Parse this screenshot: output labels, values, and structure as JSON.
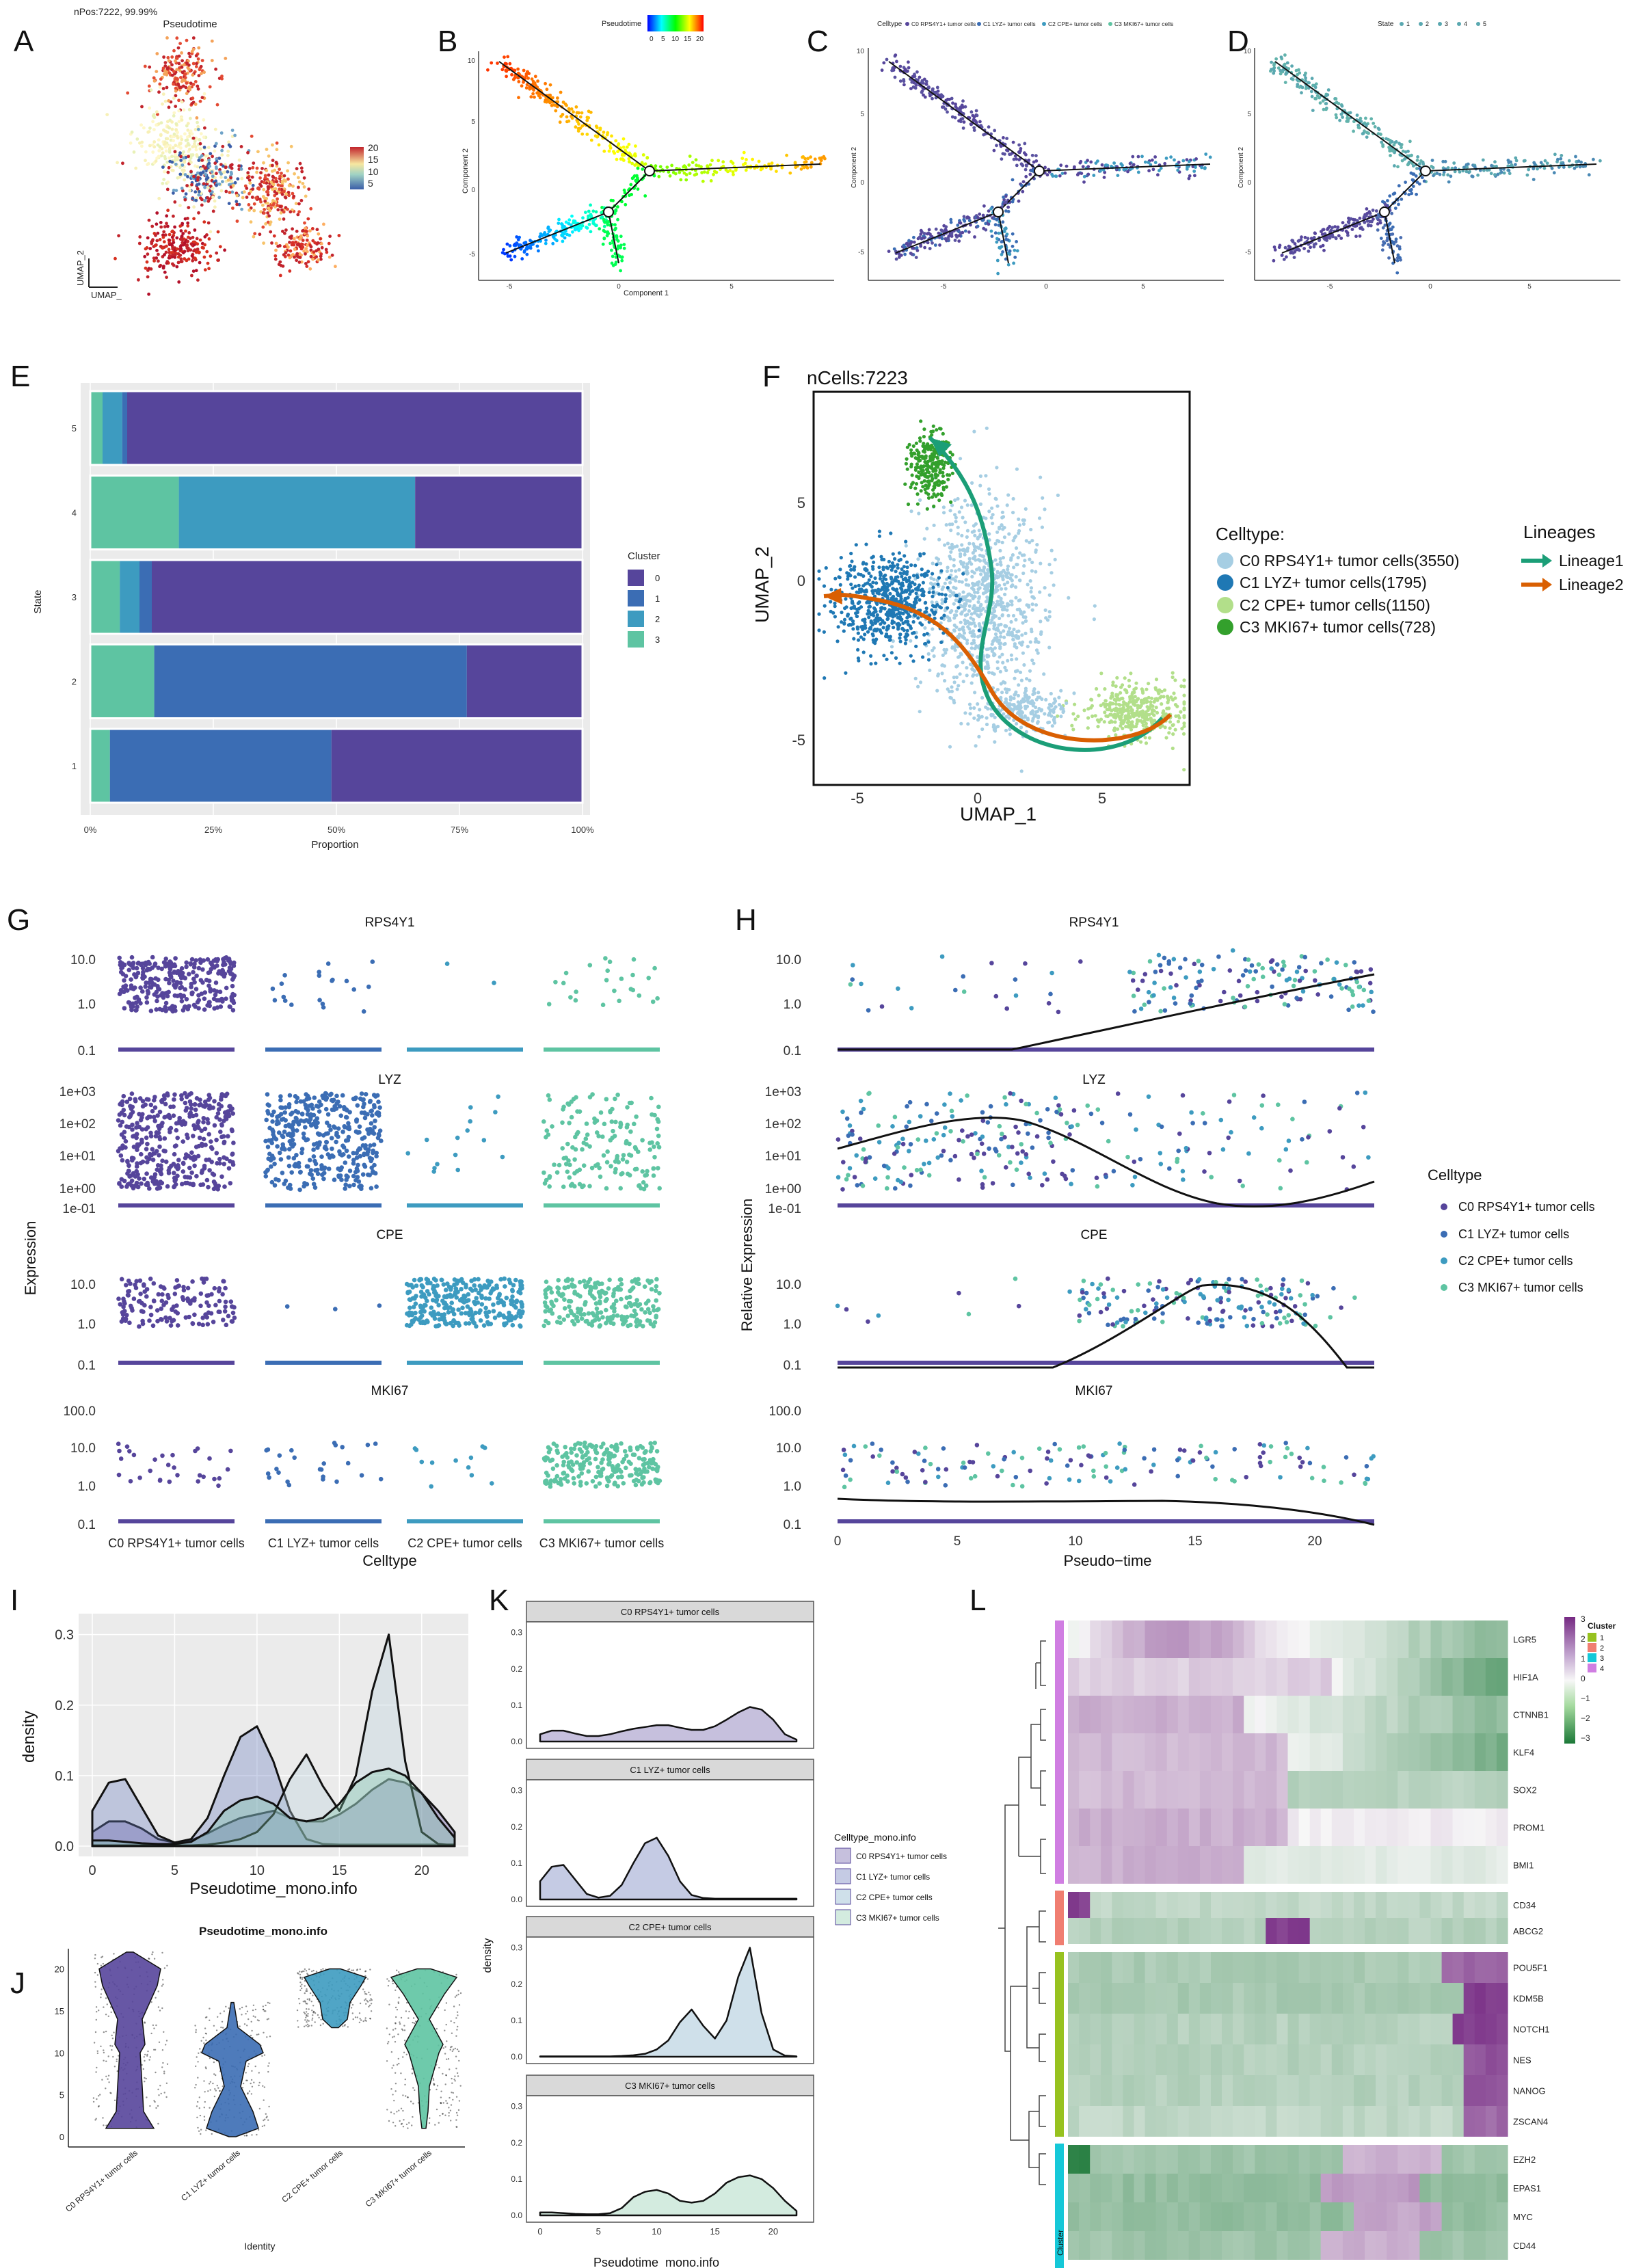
{
  "figure": {
    "panel_letters": [
      "A",
      "B",
      "C",
      "D",
      "E",
      "F",
      "G",
      "H",
      "I",
      "J",
      "K",
      "L"
    ]
  },
  "panelA": {
    "npos_label": "nPos:7222, 99.99%",
    "title": "Pseudotime",
    "legend_ticks": [
      "20",
      "15",
      "10",
      "5"
    ],
    "axis_y": "UMAP_2",
    "axis_x": "UMAP_"
  },
  "panelB": {
    "legend_title": "Pseudotime",
    "legend_ticks": [
      "0",
      "5",
      "10",
      "15",
      "20"
    ],
    "xlabel": "Component 1",
    "ylabel": "Component 2",
    "yticks": [
      "10",
      "5",
      "0",
      "-5"
    ],
    "xticks": [
      "-5",
      "0",
      "5"
    ]
  },
  "panelC": {
    "legend_title": "Celltype",
    "legend_items": [
      "C0 RPS4Y1+ tumor cells",
      "C1 LYZ+ tumor cells",
      "C2 CPE+ tumor cells",
      "C3 MKI67+ tumor cells"
    ],
    "ylabel": "Component 2",
    "yticks": [
      "10",
      "5",
      "0",
      "-5"
    ],
    "xticks": [
      "-5",
      "0",
      "5"
    ]
  },
  "panelD": {
    "legend_title": "State",
    "legend_items": [
      "1",
      "2",
      "3",
      "4",
      "5"
    ],
    "ylabel": "Component 2",
    "yticks": [
      "10",
      "5",
      "0",
      "-5"
    ],
    "xticks": [
      "-5",
      "0",
      "5"
    ]
  },
  "chart_data": [
    {
      "id": "E",
      "type": "bar",
      "orientation": "horizontal",
      "stacked": true,
      "categories": [
        "5",
        "4",
        "3",
        "2",
        "1"
      ],
      "xlabel": "Proportion",
      "ylabel": "State",
      "xticks": [
        "0%",
        "25%",
        "50%",
        "75%",
        "100%"
      ],
      "legend_title": "Cluster",
      "series": [
        {
          "name": "3",
          "color": "#5ec4a2",
          "values": [
            0.025,
            0.18,
            0.06,
            0.13,
            0.04
          ]
        },
        {
          "name": "2",
          "color": "#3d9bc0",
          "values": [
            0.04,
            0.48,
            0.04,
            0.0,
            0.0
          ]
        },
        {
          "name": "1",
          "color": "#3b6db4",
          "values": [
            0.01,
            0.0,
            0.025,
            0.635,
            0.45
          ]
        },
        {
          "name": "0",
          "color": "#56459b",
          "values": [
            0.925,
            0.34,
            0.875,
            0.235,
            0.51
          ]
        }
      ]
    },
    {
      "id": "I",
      "type": "area",
      "xlabel": "Pseudotime_mono.info",
      "ylabel": "density",
      "xlim": [
        0,
        22
      ],
      "ylim": [
        0,
        0.32
      ],
      "xticks": [
        "0",
        "5",
        "10",
        "15",
        "20"
      ],
      "yticks": [
        "0.0",
        "0.1",
        "0.2",
        "0.3"
      ],
      "x": [
        0,
        1,
        2,
        3,
        4,
        5,
        6,
        7,
        8,
        9,
        10,
        11,
        12,
        13,
        14,
        15,
        16,
        17,
        18,
        19,
        20,
        21,
        22
      ],
      "series": [
        {
          "name": "C0 RPS4Y1+ tumor cells",
          "color": "#56459b",
          "values": [
            0.02,
            0.035,
            0.035,
            0.025,
            0.01,
            0.005,
            0.008,
            0.018,
            0.03,
            0.04,
            0.045,
            0.05,
            0.04,
            0.035,
            0.035,
            0.045,
            0.06,
            0.08,
            0.095,
            0.09,
            0.075,
            0.05,
            0.02
          ]
        },
        {
          "name": "C1 LYZ+ tumor cells",
          "color": "#6a7fc0",
          "values": [
            0.05,
            0.09,
            0.095,
            0.055,
            0.015,
            0.005,
            0.01,
            0.04,
            0.1,
            0.155,
            0.17,
            0.12,
            0.05,
            0.01,
            0.003,
            0.002,
            0.002,
            0.002,
            0.002,
            0.002,
            0.002,
            0.002,
            0.002
          ]
        },
        {
          "name": "C2 CPE+ tumor cells",
          "color": "#b9d1de",
          "values": [
            0.001,
            0.001,
            0.001,
            0.001,
            0.001,
            0.001,
            0.001,
            0.002,
            0.005,
            0.01,
            0.02,
            0.045,
            0.095,
            0.13,
            0.085,
            0.05,
            0.1,
            0.22,
            0.3,
            0.12,
            0.02,
            0.003,
            0.001
          ]
        },
        {
          "name": "C3 MKI67+ tumor cells",
          "color": "#7dc5a8",
          "values": [
            0.008,
            0.008,
            0.006,
            0.004,
            0.003,
            0.003,
            0.006,
            0.02,
            0.05,
            0.065,
            0.07,
            0.06,
            0.04,
            0.035,
            0.04,
            0.06,
            0.09,
            0.105,
            0.11,
            0.1,
            0.075,
            0.04,
            0.012
          ]
        }
      ]
    },
    {
      "id": "K",
      "type": "area",
      "xlabel": "Pseudotime_mono.info",
      "ylabel": "density",
      "xticks": [
        "0",
        "5",
        "10",
        "15",
        "20"
      ],
      "yticks": [
        "0.0",
        "0.1",
        "0.2",
        "0.3"
      ],
      "legend_title": "Celltype_mono.info",
      "x": [
        0,
        1,
        2,
        3,
        4,
        5,
        6,
        7,
        8,
        9,
        10,
        11,
        12,
        13,
        14,
        15,
        16,
        17,
        18,
        19,
        20,
        21,
        22
      ],
      "facets": [
        {
          "title": "C0 RPS4Y1+ tumor cells",
          "color": "#c6c0dd",
          "values": [
            0.02,
            0.03,
            0.03,
            0.022,
            0.015,
            0.015,
            0.02,
            0.028,
            0.035,
            0.04,
            0.045,
            0.045,
            0.038,
            0.032,
            0.032,
            0.042,
            0.06,
            0.08,
            0.095,
            0.088,
            0.06,
            0.02,
            0.005
          ]
        },
        {
          "title": "C1 LYZ+ tumor cells",
          "color": "#c5cbe4",
          "values": [
            0.05,
            0.09,
            0.095,
            0.055,
            0.015,
            0.005,
            0.01,
            0.04,
            0.1,
            0.155,
            0.17,
            0.12,
            0.05,
            0.012,
            0.004,
            0.002,
            0.002,
            0.002,
            0.002,
            0.002,
            0.002,
            0.002,
            0.002
          ]
        },
        {
          "title": "C2 CPE+ tumor cells",
          "color": "#cfe0ea",
          "values": [
            0.001,
            0.001,
            0.001,
            0.001,
            0.001,
            0.001,
            0.001,
            0.002,
            0.004,
            0.008,
            0.02,
            0.045,
            0.095,
            0.13,
            0.085,
            0.05,
            0.1,
            0.22,
            0.3,
            0.12,
            0.02,
            0.003,
            0.001
          ]
        },
        {
          "title": "C3 MKI67+ tumor cells",
          "color": "#d3ebdf",
          "values": [
            0.008,
            0.008,
            0.006,
            0.004,
            0.003,
            0.003,
            0.006,
            0.02,
            0.05,
            0.065,
            0.07,
            0.06,
            0.04,
            0.035,
            0.04,
            0.06,
            0.09,
            0.105,
            0.11,
            0.1,
            0.075,
            0.04,
            0.012
          ]
        }
      ]
    },
    {
      "id": "J",
      "type": "violin",
      "title": "Pseudotime_mono.info",
      "xlabel": "Identity",
      "yticks": [
        "0",
        "5",
        "10",
        "15",
        "20"
      ],
      "categories": [
        "C0 RPS4Y1+ tumor cells",
        "C1 LYZ+ tumor cells",
        "C2 CPE+ tumor cells",
        "C3 MKI67+ tumor cells"
      ],
      "colors": [
        "#56459b",
        "#3b6db4",
        "#3d9bc0",
        "#5ec4a2"
      ]
    }
  ],
  "panelF": {
    "title": "nCells:7223",
    "xlabel": "UMAP_1",
    "ylabel": "UMAP_2",
    "xticks": [
      "-5",
      "0",
      "5"
    ],
    "yticks": [
      "5",
      "0",
      "-5"
    ],
    "celltype_title": "Celltype:",
    "celltypes": [
      {
        "label": "C0 RPS4Y1+ tumor cells(3550)",
        "color": "#a6cee3"
      },
      {
        "label": "C1 LYZ+ tumor cells(1795)",
        "color": "#1f78b4"
      },
      {
        "label": "C2 CPE+ tumor cells(1150)",
        "color": "#b2df8a"
      },
      {
        "label": "C3 MKI67+ tumor cells(728)",
        "color": "#33a02c"
      }
    ],
    "lineage_title": "Lineages",
    "lineages": [
      {
        "label": "Lineage1",
        "color": "#1b9e77"
      },
      {
        "label": "Lineage2",
        "color": "#d95f02"
      }
    ]
  },
  "panelG": {
    "ylabel": "Expression",
    "xlabel": "Celltype",
    "genes": [
      "RPS4Y1",
      "LYZ",
      "CPE",
      "MKI67"
    ],
    "yticks_rps": [
      "10.0",
      "1.0",
      "0.1"
    ],
    "yticks_lyz": [
      "1e+03",
      "1e+02",
      "1e+01",
      "1e+00",
      "1e-01"
    ],
    "yticks_cpe": [
      "10.0",
      "1.0",
      "0.1"
    ],
    "yticks_mki": [
      "100.0",
      "10.0",
      "1.0",
      "0.1"
    ],
    "xticks": [
      "C0 RPS4Y1+ tumor cells",
      "C1 LYZ+ tumor cells",
      "C2 CPE+ tumor cells",
      "C3 MKI67+ tumor cells"
    ]
  },
  "panelH": {
    "ylabel": "Relative Expression",
    "xlabel": "Pseudo−time",
    "genes": [
      "RPS4Y1",
      "LYZ",
      "CPE",
      "MKI67"
    ],
    "xticks": [
      "0",
      "5",
      "10",
      "15",
      "20"
    ],
    "legend_title": "Celltype",
    "legend_items": [
      "C0 RPS4Y1+ tumor cells",
      "C1 LYZ+ tumor cells",
      "C2 CPE+ tumor cells",
      "C3 MKI67+ tumor cells"
    ]
  },
  "panelL": {
    "genes": [
      "LGR5",
      "HIF1A",
      "CTNNB1",
      "KLF4",
      "SOX2",
      "PROM1",
      "BMI1",
      "CD34",
      "ABCG2",
      "POU5F1",
      "KDM5B",
      "NOTCH1",
      "NES",
      "NANOG",
      "ZSCAN4",
      "EZH2",
      "EPAS1",
      "MYC",
      "CD44"
    ],
    "legend_title": "Cluster",
    "clusters": [
      "1",
      "2",
      "3",
      "4"
    ],
    "cluster_colors": [
      "#97c21f",
      "#f07e71",
      "#15c8d8",
      "#d07ee2"
    ],
    "scale_ticks": [
      "3",
      "2",
      "1",
      "0",
      "−1",
      "−2",
      "−3"
    ],
    "cluster_label": "Cluster"
  }
}
